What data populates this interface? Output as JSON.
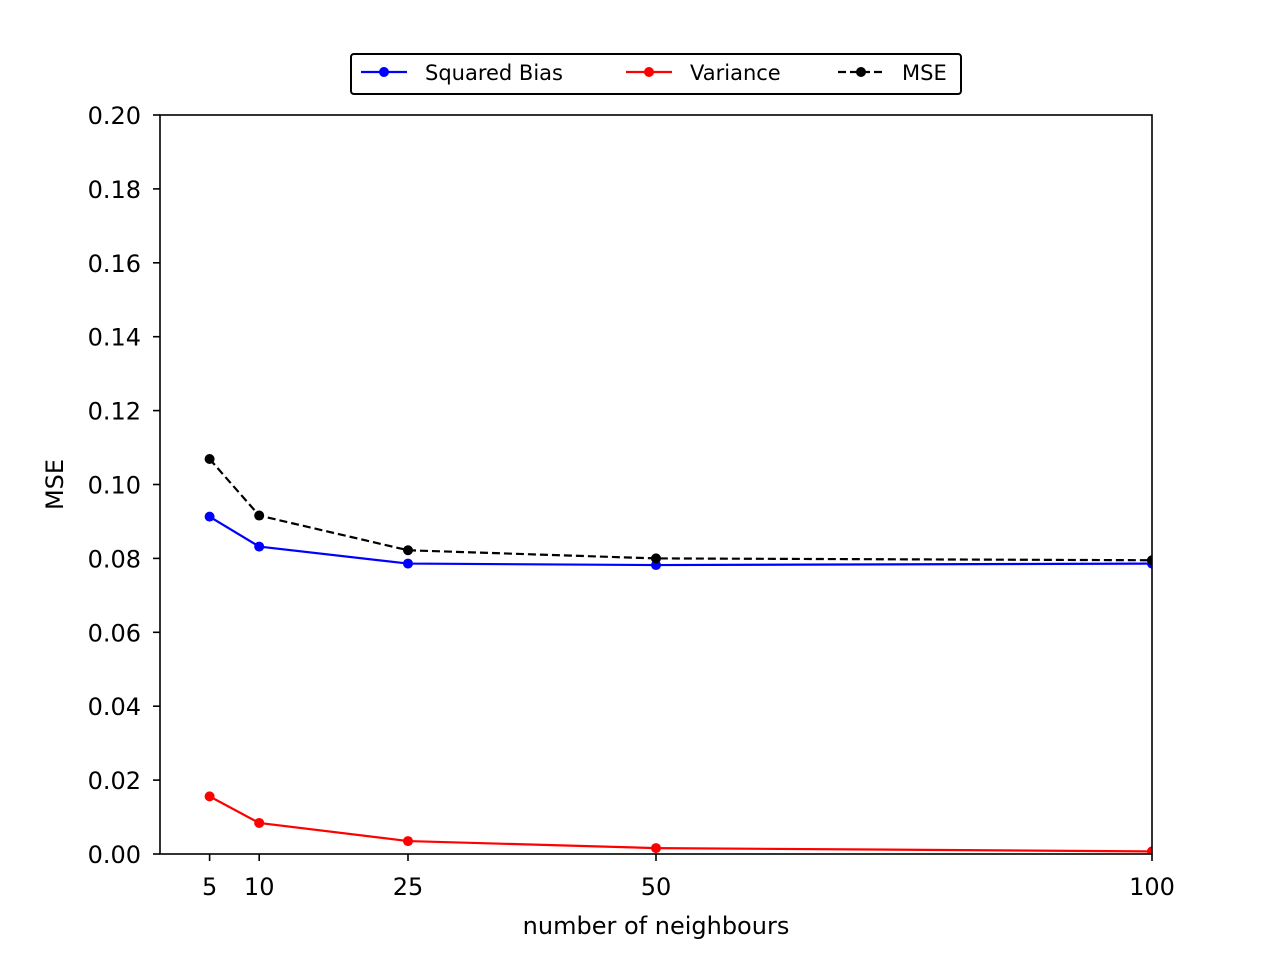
{
  "chart_data": {
    "type": "line",
    "title": "",
    "xlabel": "number of neighbours",
    "ylabel": "MSE",
    "x": [
      5,
      10,
      25,
      50,
      100
    ],
    "xlim": [
      0,
      100
    ],
    "ylim": [
      0.0,
      0.2
    ],
    "xticks": [
      5,
      10,
      25,
      50,
      100
    ],
    "xtick_labels": [
      "5",
      "10",
      "25",
      "50",
      "100"
    ],
    "yticks": [
      0.0,
      0.02,
      0.04,
      0.06,
      0.08,
      0.1,
      0.12,
      0.14,
      0.16,
      0.18,
      0.2
    ],
    "ytick_labels": [
      "0.00",
      "0.02",
      "0.04",
      "0.06",
      "0.08",
      "0.10",
      "0.12",
      "0.14",
      "0.16",
      "0.18",
      "0.20"
    ],
    "grid": false,
    "legend_placement": "top-center (above plot area)",
    "series": [
      {
        "name": "Squared Bias",
        "color": "#0000ff",
        "line_style": "solid",
        "marker": "circle",
        "values": [
          0.0913,
          0.0832,
          0.0786,
          0.0782,
          0.0786
        ]
      },
      {
        "name": "Variance",
        "color": "#ff0000",
        "line_style": "solid",
        "marker": "circle",
        "values": [
          0.0156,
          0.0084,
          0.0035,
          0.0016,
          0.0007
        ]
      },
      {
        "name": "MSE",
        "color": "#000000",
        "line_style": "dashed",
        "marker": "circle",
        "values": [
          0.1069,
          0.0916,
          0.0822,
          0.08,
          0.0795
        ]
      }
    ]
  }
}
